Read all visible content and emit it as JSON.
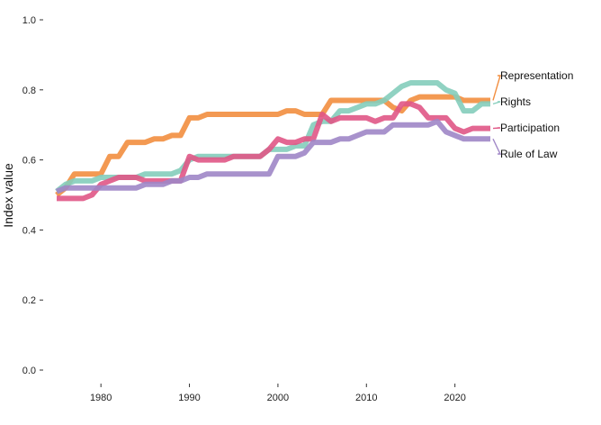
{
  "chart_data": {
    "type": "line",
    "title": "",
    "xlabel": "",
    "ylabel": "Index value",
    "xlim": [
      1975,
      2024
    ],
    "ylim": [
      0,
      1.0
    ],
    "x_ticks": [
      1980,
      1990,
      2000,
      2010,
      2020
    ],
    "y_ticks": [
      "0.0",
      "0.2",
      "0.4",
      "0.6",
      "0.8",
      "1.0"
    ],
    "grid": false,
    "legend": "direct labels at right end of lines",
    "x": [
      1975,
      1976,
      1977,
      1978,
      1979,
      1980,
      1981,
      1982,
      1983,
      1984,
      1985,
      1986,
      1987,
      1988,
      1989,
      1990,
      1991,
      1992,
      1993,
      1994,
      1995,
      1996,
      1997,
      1998,
      1999,
      2000,
      2001,
      2002,
      2003,
      2004,
      2005,
      2006,
      2007,
      2008,
      2009,
      2010,
      2011,
      2012,
      2013,
      2014,
      2015,
      2016,
      2017,
      2018,
      2019,
      2020,
      2021,
      2022,
      2023,
      2024
    ],
    "series": [
      {
        "name": "Representation",
        "color": "#f28e3f",
        "values": [
          0.5,
          0.52,
          0.56,
          0.56,
          0.56,
          0.56,
          0.61,
          0.61,
          0.65,
          0.65,
          0.65,
          0.66,
          0.66,
          0.67,
          0.67,
          0.72,
          0.72,
          0.73,
          0.73,
          0.73,
          0.73,
          0.73,
          0.73,
          0.73,
          0.73,
          0.73,
          0.74,
          0.74,
          0.73,
          0.73,
          0.73,
          0.77,
          0.77,
          0.77,
          0.77,
          0.77,
          0.77,
          0.77,
          0.75,
          0.74,
          0.77,
          0.78,
          0.78,
          0.78,
          0.78,
          0.78,
          0.77,
          0.77,
          0.77,
          0.77
        ]
      },
      {
        "name": "Rights",
        "color": "#84cdbb",
        "values": [
          0.51,
          0.53,
          0.54,
          0.54,
          0.54,
          0.55,
          0.55,
          0.55,
          0.55,
          0.55,
          0.56,
          0.56,
          0.56,
          0.56,
          0.57,
          0.6,
          0.61,
          0.61,
          0.61,
          0.61,
          0.61,
          0.61,
          0.61,
          0.61,
          0.63,
          0.63,
          0.63,
          0.64,
          0.64,
          0.7,
          0.71,
          0.71,
          0.74,
          0.74,
          0.75,
          0.76,
          0.76,
          0.77,
          0.79,
          0.81,
          0.82,
          0.82,
          0.82,
          0.82,
          0.8,
          0.79,
          0.74,
          0.74,
          0.76,
          0.76
        ]
      },
      {
        "name": "Participation",
        "color": "#e05786",
        "values": [
          0.49,
          0.49,
          0.49,
          0.49,
          0.5,
          0.53,
          0.54,
          0.55,
          0.55,
          0.55,
          0.54,
          0.54,
          0.54,
          0.54,
          0.54,
          0.61,
          0.6,
          0.6,
          0.6,
          0.6,
          0.61,
          0.61,
          0.61,
          0.61,
          0.63,
          0.66,
          0.65,
          0.65,
          0.66,
          0.66,
          0.73,
          0.71,
          0.72,
          0.72,
          0.72,
          0.72,
          0.71,
          0.72,
          0.72,
          0.76,
          0.76,
          0.75,
          0.72,
          0.72,
          0.72,
          0.69,
          0.68,
          0.69,
          0.69,
          0.69
        ]
      },
      {
        "name": "Rule of Law",
        "color": "#9f86c6",
        "values": [
          0.51,
          0.52,
          0.52,
          0.52,
          0.52,
          0.52,
          0.52,
          0.52,
          0.52,
          0.52,
          0.53,
          0.53,
          0.53,
          0.54,
          0.54,
          0.55,
          0.55,
          0.56,
          0.56,
          0.56,
          0.56,
          0.56,
          0.56,
          0.56,
          0.56,
          0.61,
          0.61,
          0.61,
          0.62,
          0.65,
          0.65,
          0.65,
          0.66,
          0.66,
          0.67,
          0.68,
          0.68,
          0.68,
          0.7,
          0.7,
          0.7,
          0.7,
          0.7,
          0.71,
          0.68,
          0.67,
          0.66,
          0.66,
          0.66,
          0.66
        ]
      }
    ]
  }
}
